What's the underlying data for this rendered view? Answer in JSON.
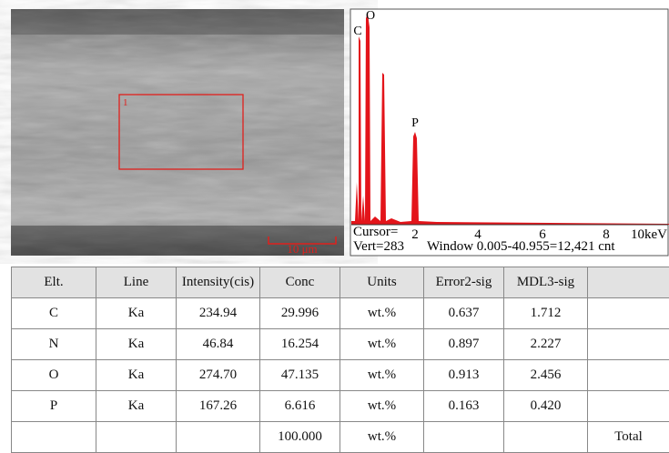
{
  "figure": {
    "image": {
      "region_label": "1",
      "scale_bar": "10 μm"
    },
    "spectrum": {
      "peaks": [
        "C",
        "O",
        "P"
      ],
      "axis_labels": [
        "2",
        "4",
        "6",
        "8",
        "10keV"
      ],
      "cursor": "Cursor=",
      "vert": "Vert=283",
      "window": "Window 0.005-40.955=12,421 cnt"
    }
  },
  "table": {
    "header": [
      "Elt.",
      "Line",
      "Intensity(cis)",
      "Conc",
      "Units",
      "Error2-sig",
      "MDL3-sig"
    ],
    "rows": [
      {
        "elt": "C",
        "line": "Ka",
        "intensity": "234.94",
        "conc": "29.996",
        "units": "wt.%",
        "error": "0.637",
        "mdl": "1.712"
      },
      {
        "elt": "N",
        "line": "Ka",
        "intensity": "46.84",
        "conc": "16.254",
        "units": "wt.%",
        "error": "0.897",
        "mdl": "2.227"
      },
      {
        "elt": "O",
        "line": "Ka",
        "intensity": "274.70",
        "conc": "47.135",
        "units": "wt.%",
        "error": "0.913",
        "mdl": "2.456"
      },
      {
        "elt": "P",
        "line": "Ka",
        "intensity": "167.26",
        "conc": "6.616",
        "units": "wt.%",
        "error": "0.163",
        "mdl": "0.420"
      },
      {
        "conc": "100.000",
        "units": "wt.%",
        "total": "Total"
      }
    ]
  }
}
